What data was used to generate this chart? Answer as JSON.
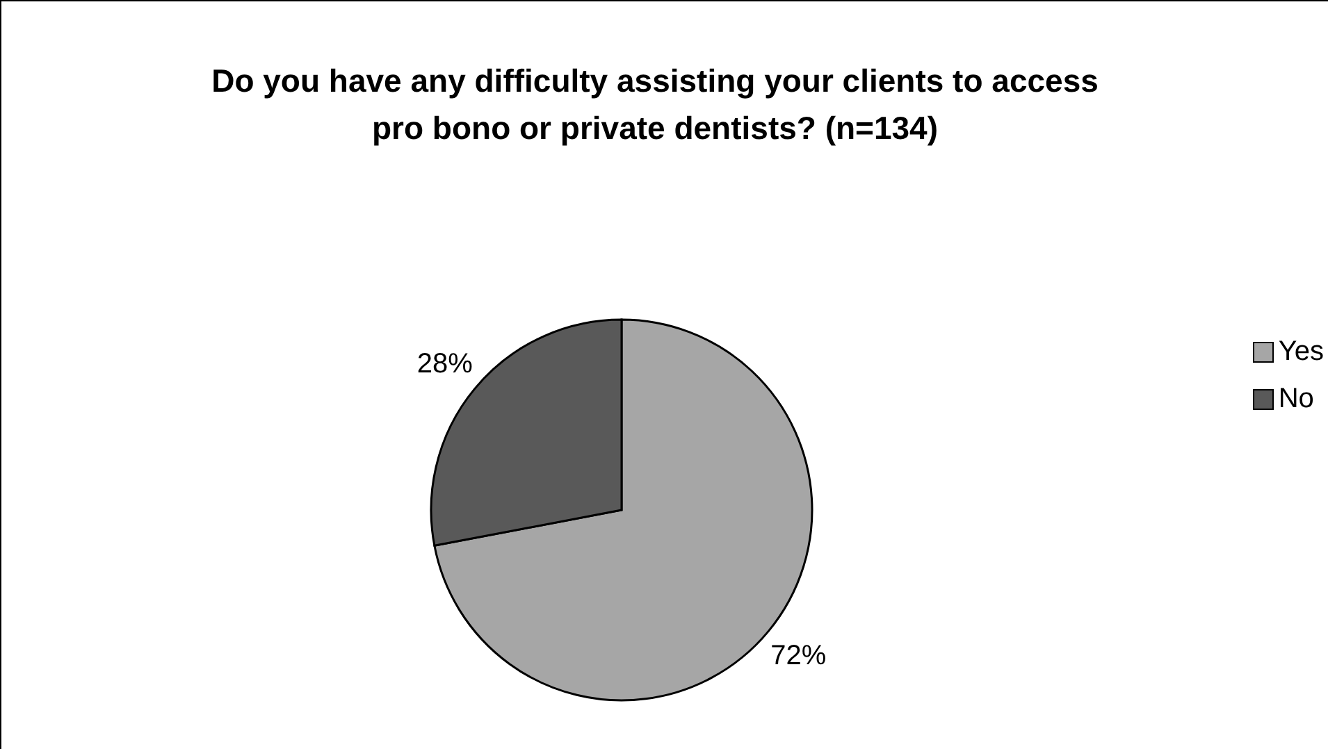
{
  "chart_data": {
    "type": "pie",
    "title": "Do you have any difficulty assisting your clients to access pro bono or private dentists? (n=134)",
    "categories": [
      "Yes",
      "No"
    ],
    "values": [
      72,
      28
    ],
    "colors": [
      "#a6a6a6",
      "#595959"
    ],
    "value_labels": [
      "72%",
      "28%"
    ],
    "legend": "right"
  }
}
